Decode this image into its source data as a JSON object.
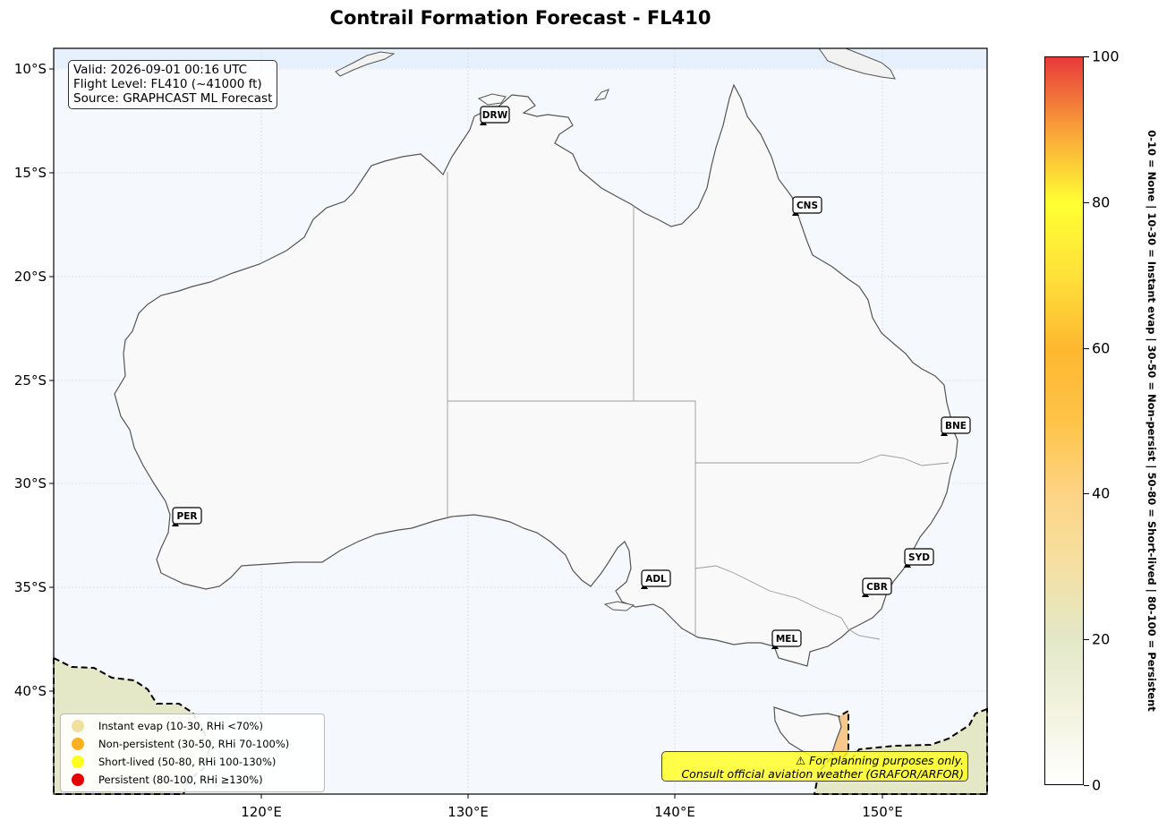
{
  "title": "Contrail Formation Forecast - FL410",
  "info": {
    "valid": "Valid: 2026-09-01 00:16 UTC",
    "flight_level": "Flight Level: FL410 (~41000 ft)",
    "source": "Source: GRAPHCAST ML Forecast"
  },
  "axes": {
    "lon_ticks": [
      "120°E",
      "130°E",
      "140°E",
      "150°E"
    ],
    "lat_ticks": [
      "10°S",
      "15°S",
      "20°S",
      "25°S",
      "30°S",
      "35°S",
      "40°S"
    ]
  },
  "cities": [
    {
      "code": "DRW"
    },
    {
      "code": "CNS"
    },
    {
      "code": "BNE"
    },
    {
      "code": "PER"
    },
    {
      "code": "SYD"
    },
    {
      "code": "ADL"
    },
    {
      "code": "CBR"
    },
    {
      "code": "MEL"
    }
  ],
  "legend": [
    {
      "label": "Instant evap (10-30, RHi <70%)",
      "color": "#f0e0a0"
    },
    {
      "label": "Non-persistent (30-50, RHi 70-100%)",
      "color": "#ffb020"
    },
    {
      "label": "Short-lived (50-80, RHi 100-130%)",
      "color": "#ffff20"
    },
    {
      "label": "Persistent (80-100, RHi ≥130%)",
      "color": "#e00000"
    }
  ],
  "warning": {
    "line1": "⚠ For planning purposes only.",
    "line2": "Consult official aviation weather (GRAFOR/ARFOR)"
  },
  "colorbar": {
    "ticks": [
      "0",
      "20",
      "40",
      "60",
      "80",
      "100"
    ],
    "title": "0-10 = None  |  10-30 = Instant evap  |  30-50 = Non-persist  |  50-80 = Short-lived  |  80-100 = Persistent"
  }
}
